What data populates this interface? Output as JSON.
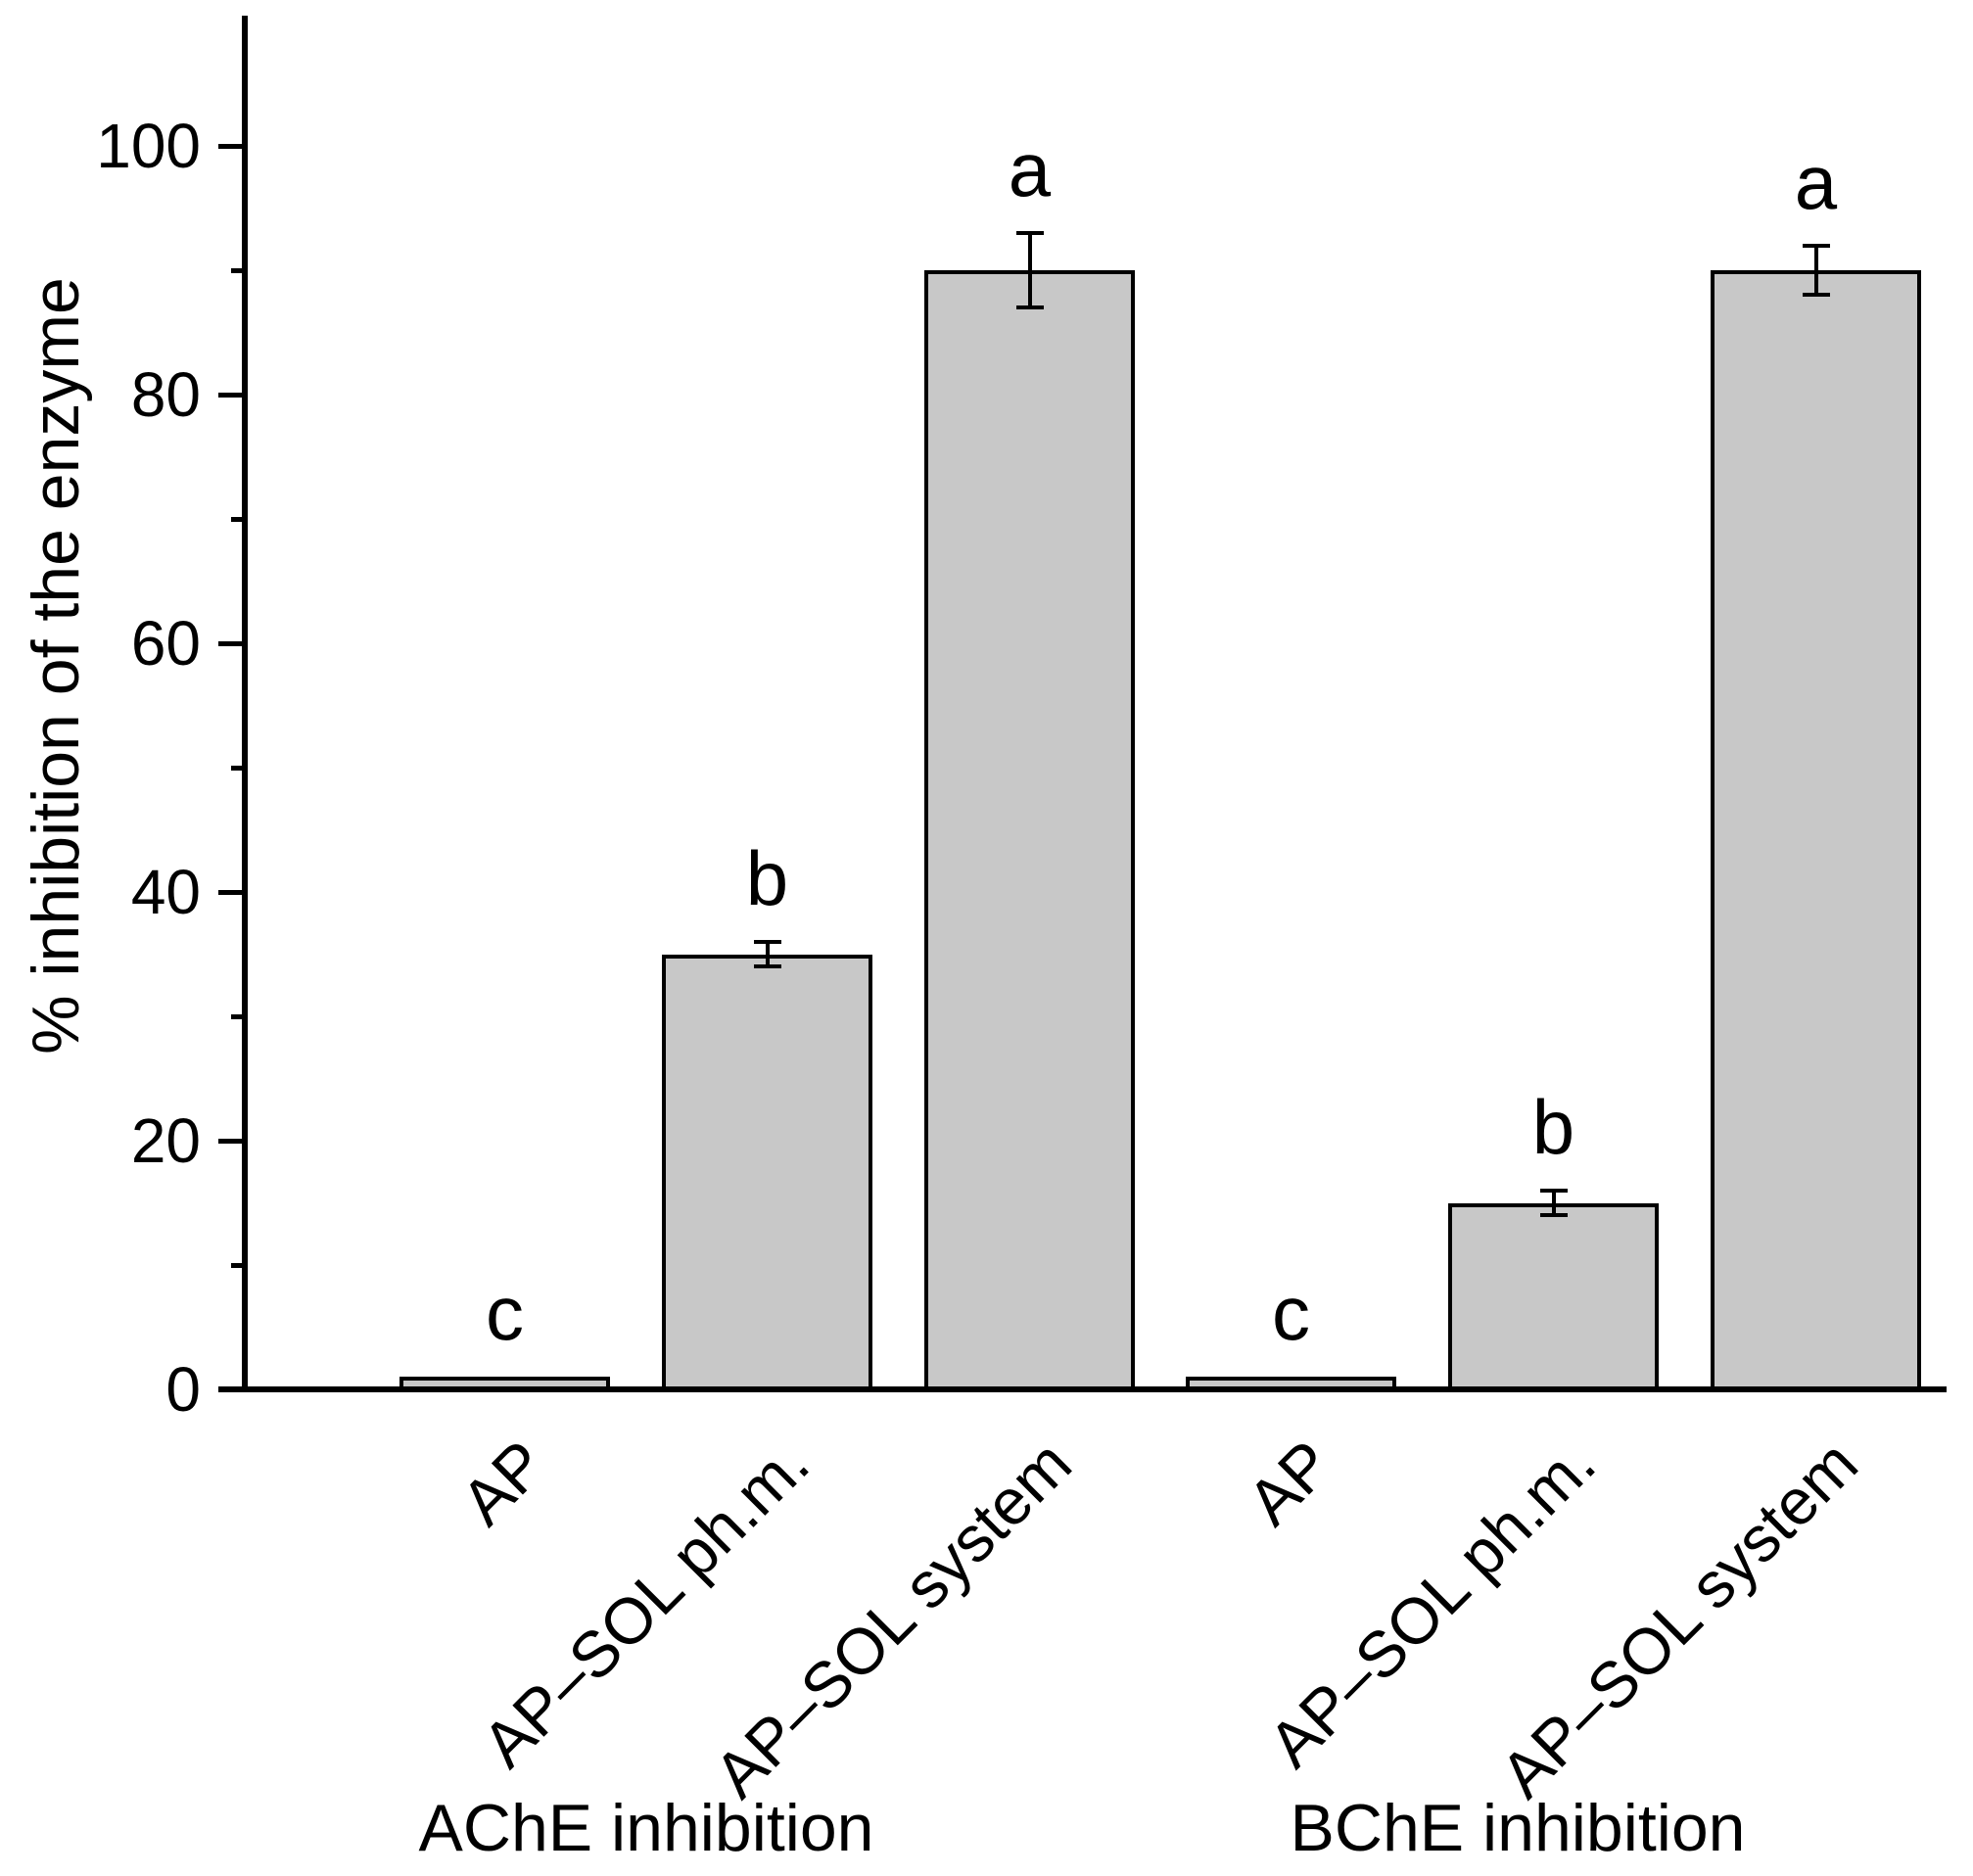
{
  "chart_data": {
    "type": "bar",
    "title": "",
    "xlabel": "",
    "ylabel": "% inhibition of the enzyme",
    "ylim": [
      0,
      110
    ],
    "yticks_major": [
      0,
      20,
      40,
      60,
      80,
      100
    ],
    "yticks_minor": [
      10,
      30,
      50,
      70,
      90
    ],
    "grid": false,
    "legend": "none",
    "bar_fill": "#c8c8c8",
    "bar_border": "#000000",
    "axis_color": "#000000",
    "background": "#ffffff",
    "groups": [
      {
        "label": "AChE inhibition",
        "bars": [
          {
            "category": "AP",
            "value": 1,
            "error": null,
            "sig_letter": "c"
          },
          {
            "category": "AP–SOL ph.m.",
            "value": 35,
            "error": 1,
            "sig_letter": "b"
          },
          {
            "category": "AP–SOL system",
            "value": 90,
            "error": 3,
            "sig_letter": "a"
          }
        ]
      },
      {
        "label": "BChE inhibition",
        "bars": [
          {
            "category": "AP",
            "value": 1,
            "error": null,
            "sig_letter": "c"
          },
          {
            "category": "AP–SOL ph.m.",
            "value": 15,
            "error": 1,
            "sig_letter": "b"
          },
          {
            "category": "AP–SOL system",
            "value": 90,
            "error": 2,
            "sig_letter": "a"
          }
        ]
      }
    ]
  }
}
